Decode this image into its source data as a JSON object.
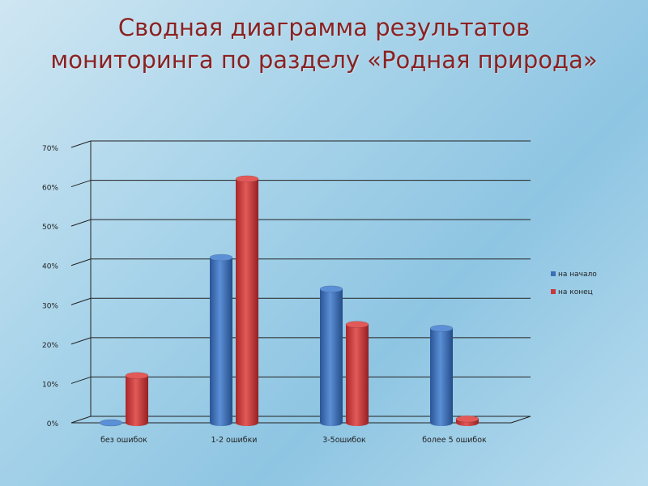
{
  "title": "Сводная диаграмма результатов мониторинга по разделу «Родная природа»",
  "colors": {
    "series1": "#3a6fb5",
    "series2": "#c8383a",
    "grid": "#222222"
  },
  "chart_data": {
    "type": "bar",
    "categories": [
      "без ошибок",
      "1-2 ошибки",
      "3-5ошибок",
      "более 5 ошибок"
    ],
    "series": [
      {
        "name": "на начало",
        "values": [
          0,
          42,
          34,
          24
        ]
      },
      {
        "name": "на конец",
        "values": [
          12,
          62,
          25,
          1
        ]
      }
    ],
    "yticks": [
      "0%",
      "10%",
      "20%",
      "30%",
      "40%",
      "50%",
      "60%",
      "70%"
    ],
    "ylim": [
      0,
      70
    ],
    "grid": true,
    "legend_position": "right",
    "style": "3d-cylinder"
  }
}
